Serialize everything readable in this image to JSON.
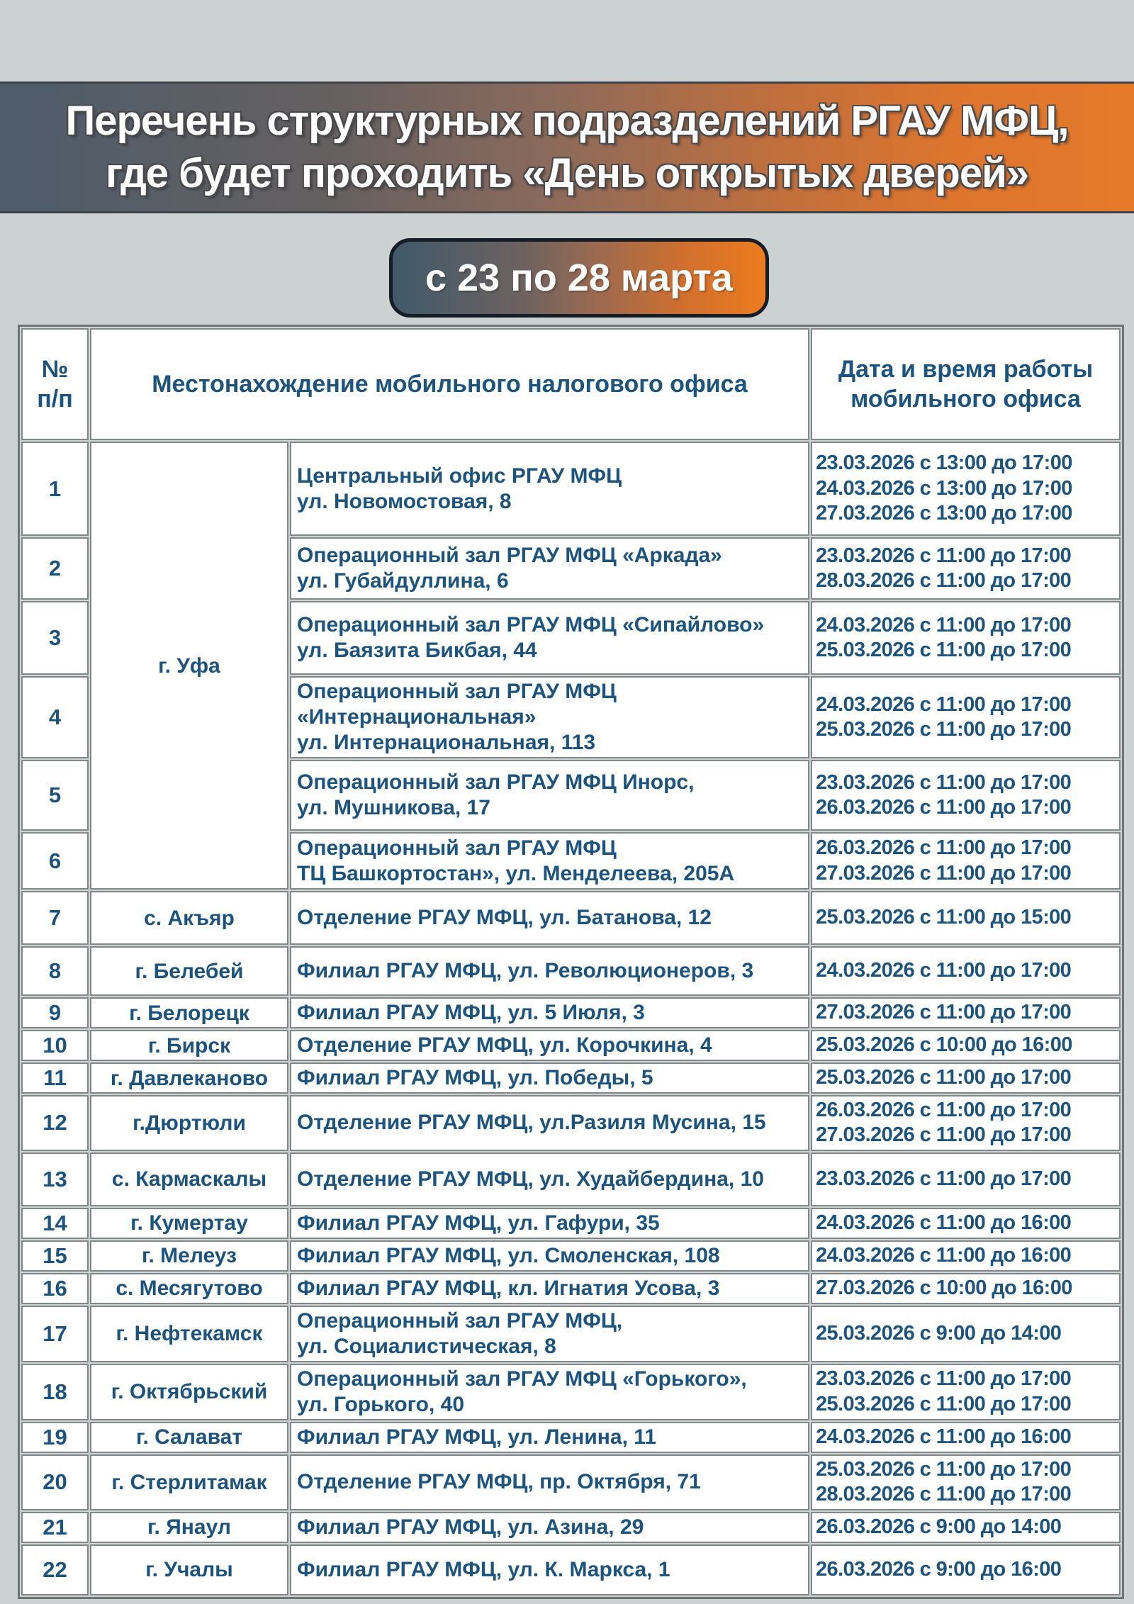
{
  "banner": {
    "title_line1": "Перечень структурных подразделений РГАУ МФЦ,",
    "title_line2": "где будет проходить «День открытых дверей»"
  },
  "badge": {
    "label": "с 23 по 28 марта"
  },
  "colors": {
    "page_bg": "#ccd2d1",
    "slate_blue": "#4d5c6b",
    "accent_orange": "#e57a2a",
    "table_text_blue": "#1b5381"
  },
  "table": {
    "headers": {
      "num": "№\nп/п",
      "location": "Местонахождение мобильного налогового офиса",
      "datetime": "Дата и время работы\nмобильного офиса"
    },
    "rows": [
      {
        "num": "1",
        "city": "г. Уфа",
        "city_rowspan": 6,
        "office": [
          "Центральный офис  РГАУ МФЦ",
          "ул. Новомостовая, 8"
        ],
        "dates": [
          "23.03.2026 с 13:00 до 17:00",
          "24.03.2026 с 13:00 до 17:00",
          "27.03.2026 с 13:00 до 17:00"
        ]
      },
      {
        "num": "2",
        "office": [
          "Операционный зал РГАУ МФЦ «Аркада»",
          "ул. Губайдуллина, 6"
        ],
        "dates": [
          "23.03.2026 с 11:00 до 17:00",
          "28.03.2026 с 11:00 до 17:00"
        ]
      },
      {
        "num": "3",
        "office": [
          "Операционный зал  РГАУ МФЦ «Сипайлово»",
          "ул. Баязита Бикбая, 44"
        ],
        "dates": [
          "24.03.2026 с 11:00 до 17:00",
          "25.03.2026 с 11:00 до 17:00"
        ]
      },
      {
        "num": "4",
        "office": [
          "Операционный зал РГАУ МФЦ",
          "«Интернациональная»",
          "ул. Интернациональная, 113"
        ],
        "dates": [
          "24.03.2026 с 11:00 до 17:00",
          "25.03.2026 с 11:00 до 17:00"
        ]
      },
      {
        "num": "5",
        "office": [
          "Операционный зал РГАУ МФЦ Инорс,",
          "ул. Мушникова, 17"
        ],
        "dates": [
          "23.03.2026 с 11:00 до 17:00",
          "26.03.2026 с 11:00 до 17:00"
        ]
      },
      {
        "num": "6",
        "office": [
          "Операционный зал РГАУ МФЦ",
          "ТЦ Башкортостан»,  ул. Менделеева, 205А"
        ],
        "dates": [
          "26.03.2026 с 11:00 до 17:00",
          "27.03.2026 с 11:00 до 17:00"
        ]
      },
      {
        "num": "7",
        "city": "с. Акъяр",
        "office": [
          "Отделение РГАУ МФЦ,  ул. Батанова, 12"
        ],
        "dates": [
          "25.03.2026 с 11:00 до 15:00"
        ]
      },
      {
        "num": "8",
        "city": "г. Белебей",
        "office": [
          "Филиал РГАУ МФЦ,  ул. Революционеров, 3"
        ],
        "dates": [
          "24.03.2026 с 11:00 до 17:00"
        ]
      },
      {
        "num": "9",
        "city": "г. Белорецк",
        "office": [
          "Филиал РГАУ МФЦ, ул. 5 Июля, 3"
        ],
        "dates": [
          "27.03.2026 с 11:00 до 17:00"
        ]
      },
      {
        "num": "10",
        "city": "г. Бирск",
        "office": [
          "Отделение РГАУ МФЦ,  ул. Корочкина, 4"
        ],
        "dates": [
          "25.03.2026 с 10:00 до 16:00"
        ]
      },
      {
        "num": "11",
        "city": "г. Давлеканово",
        "office": [
          "Филиал РГАУ МФЦ, ул. Победы, 5"
        ],
        "dates": [
          "25.03.2026 с 11:00 до 17:00"
        ]
      },
      {
        "num": "12",
        "city": "г.Дюртюли",
        "office": [
          "Отделение РГАУ МФЦ, ул.Разиля Мусина, 15"
        ],
        "dates": [
          "26.03.2026 с 11:00 до 17:00",
          "27.03.2026 с 11:00 до 17:00"
        ]
      },
      {
        "num": "13",
        "city": "с. Кармаскалы",
        "office": [
          "Отделение РГАУ МФЦ, ул. Худайбердина, 10"
        ],
        "dates": [
          "23.03.2026 с 11:00 до 17:00"
        ]
      },
      {
        "num": "14",
        "city": "г. Кумертау",
        "office": [
          "Филиал РГАУ МФЦ, ул. Гафури, 35"
        ],
        "dates": [
          "24.03.2026 с 11:00 до 16:00"
        ]
      },
      {
        "num": "15",
        "city": "г. Мелеуз",
        "office": [
          "Филиал РГАУ МФЦ,  ул. Смоленская, 108"
        ],
        "dates": [
          "24.03.2026 с 11:00 до 16:00"
        ]
      },
      {
        "num": "16",
        "city": "с. Месягутово",
        "office": [
          "Филиал РГАУ МФЦ,  кл. Игнатия Усова, 3"
        ],
        "dates": [
          "27.03.2026 с 10:00 до 16:00"
        ]
      },
      {
        "num": "17",
        "city": "г. Нефтекамск",
        "office": [
          "Операционный зал РГАУ МФЦ,",
          "ул. Социалистическая, 8"
        ],
        "dates": [
          "25.03.2026 с  9:00 до 14:00"
        ]
      },
      {
        "num": "18",
        "city": "г. Октябрьский",
        "office": [
          "Операционный зал РГАУ МФЦ «Горького»,",
          "ул. Горького, 40"
        ],
        "dates": [
          "23.03.2026 с 11:00 до 17:00",
          "25.03.2026 с 11:00 до 17:00"
        ]
      },
      {
        "num": "19",
        "city": "г. Салават",
        "office": [
          "Филиал РГАУ МФЦ, ул. Ленина, 11"
        ],
        "dates": [
          "24.03.2026 с 11:00 до 16:00"
        ]
      },
      {
        "num": "20",
        "city": "г. Стерлитамак",
        "office": [
          "Отделение РГАУ МФЦ, пр. Октября, 71"
        ],
        "dates": [
          "25.03.2026 с 11:00 до 17:00",
          "28.03.2026 с 11:00 до 17:00"
        ]
      },
      {
        "num": "21",
        "city": "г. Янаул",
        "office": [
          "Филиал РГАУ МФЦ,  ул. Азина, 29"
        ],
        "dates": [
          "26.03.2026 с  9:00 до 14:00"
        ]
      },
      {
        "num": "22",
        "city": "г. Учалы",
        "office": [
          "Филиал РГАУ МФЦ,  ул. К. Маркса, 1"
        ],
        "dates": [
          "26.03.2026 с  9:00 до 16:00"
        ]
      }
    ]
  }
}
